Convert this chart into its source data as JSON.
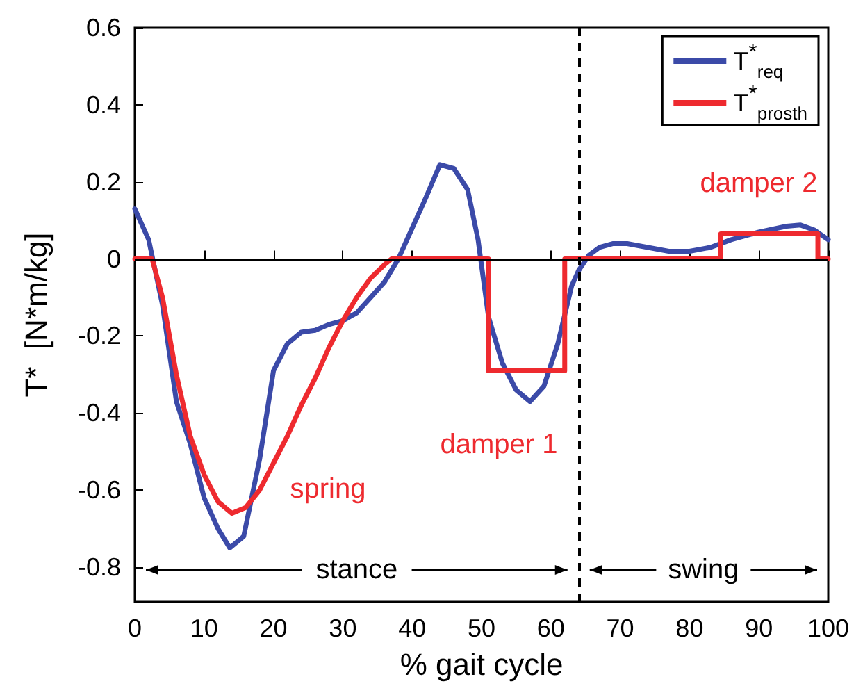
{
  "chart_data": {
    "type": "line",
    "xlabel": "% gait cycle",
    "ylabel": "T*  [N*m/kg]",
    "xlim": [
      0,
      100
    ],
    "xticks": [
      0,
      10,
      20,
      30,
      40,
      50,
      60,
      70,
      80,
      90,
      100
    ],
    "ylim": [
      -0.89,
      0.6
    ],
    "yticks": [
      -0.8,
      -0.6,
      -0.4,
      -0.2,
      0,
      0.2,
      0.4,
      0.6
    ],
    "grid": false,
    "legend": "top right",
    "series": [
      {
        "name": "T$^{*}$$_{req}$",
        "color": "#3b4aa8",
        "x": [
          0,
          2,
          4,
          6,
          8,
          10,
          12,
          13.7,
          15.7,
          18,
          20,
          22,
          24,
          26,
          28,
          30,
          32,
          34,
          36,
          38,
          40,
          42,
          44,
          46,
          48,
          49.5,
          51,
          53,
          55,
          57,
          59,
          61,
          63,
          64,
          65.5,
          67,
          69,
          71,
          74,
          77,
          80,
          83,
          86,
          90,
          94,
          96,
          98,
          100
        ],
        "values": [
          0.13,
          0.05,
          -0.12,
          -0.37,
          -0.48,
          -0.62,
          -0.7,
          -0.75,
          -0.72,
          -0.52,
          -0.29,
          -0.22,
          -0.19,
          -0.185,
          -0.17,
          -0.16,
          -0.14,
          -0.1,
          -0.06,
          0,
          0.08,
          0.16,
          0.245,
          0.235,
          0.18,
          0.05,
          -0.15,
          -0.27,
          -0.34,
          -0.37,
          -0.33,
          -0.22,
          -0.07,
          -0.03,
          0.01,
          0.03,
          0.04,
          0.04,
          0.03,
          0.02,
          0.02,
          0.03,
          0.05,
          0.07,
          0.085,
          0.088,
          0.075,
          0.05
        ]
      },
      {
        "name": "T$^{*}$$_{prosth}$",
        "color": "#ee2a2f",
        "x": [
          0,
          2.5,
          4,
          6,
          8,
          10,
          12,
          14,
          16,
          18,
          20,
          22,
          24,
          26,
          28,
          30,
          32,
          34,
          36,
          37,
          51,
          51,
          62,
          62,
          84.5,
          84.5,
          98.5,
          98.5,
          100
        ],
        "values": [
          0,
          0,
          -0.1,
          -0.3,
          -0.46,
          -0.56,
          -0.63,
          -0.66,
          -0.645,
          -0.6,
          -0.53,
          -0.46,
          -0.38,
          -0.31,
          -0.23,
          -0.16,
          -0.1,
          -0.05,
          -0.015,
          0,
          0,
          -0.29,
          -0.29,
          0,
          0,
          0.065,
          0.065,
          0,
          0
        ]
      }
    ],
    "ref_lines": [
      {
        "axis": "y",
        "value": 0,
        "color": "#000000",
        "line_style": "solid"
      },
      {
        "axis": "x",
        "value": 64,
        "color": "#000000",
        "line_style": "dashed"
      }
    ],
    "annotations": [
      "spring",
      "damper 1",
      "damper 2",
      "stance",
      "swing"
    ]
  }
}
